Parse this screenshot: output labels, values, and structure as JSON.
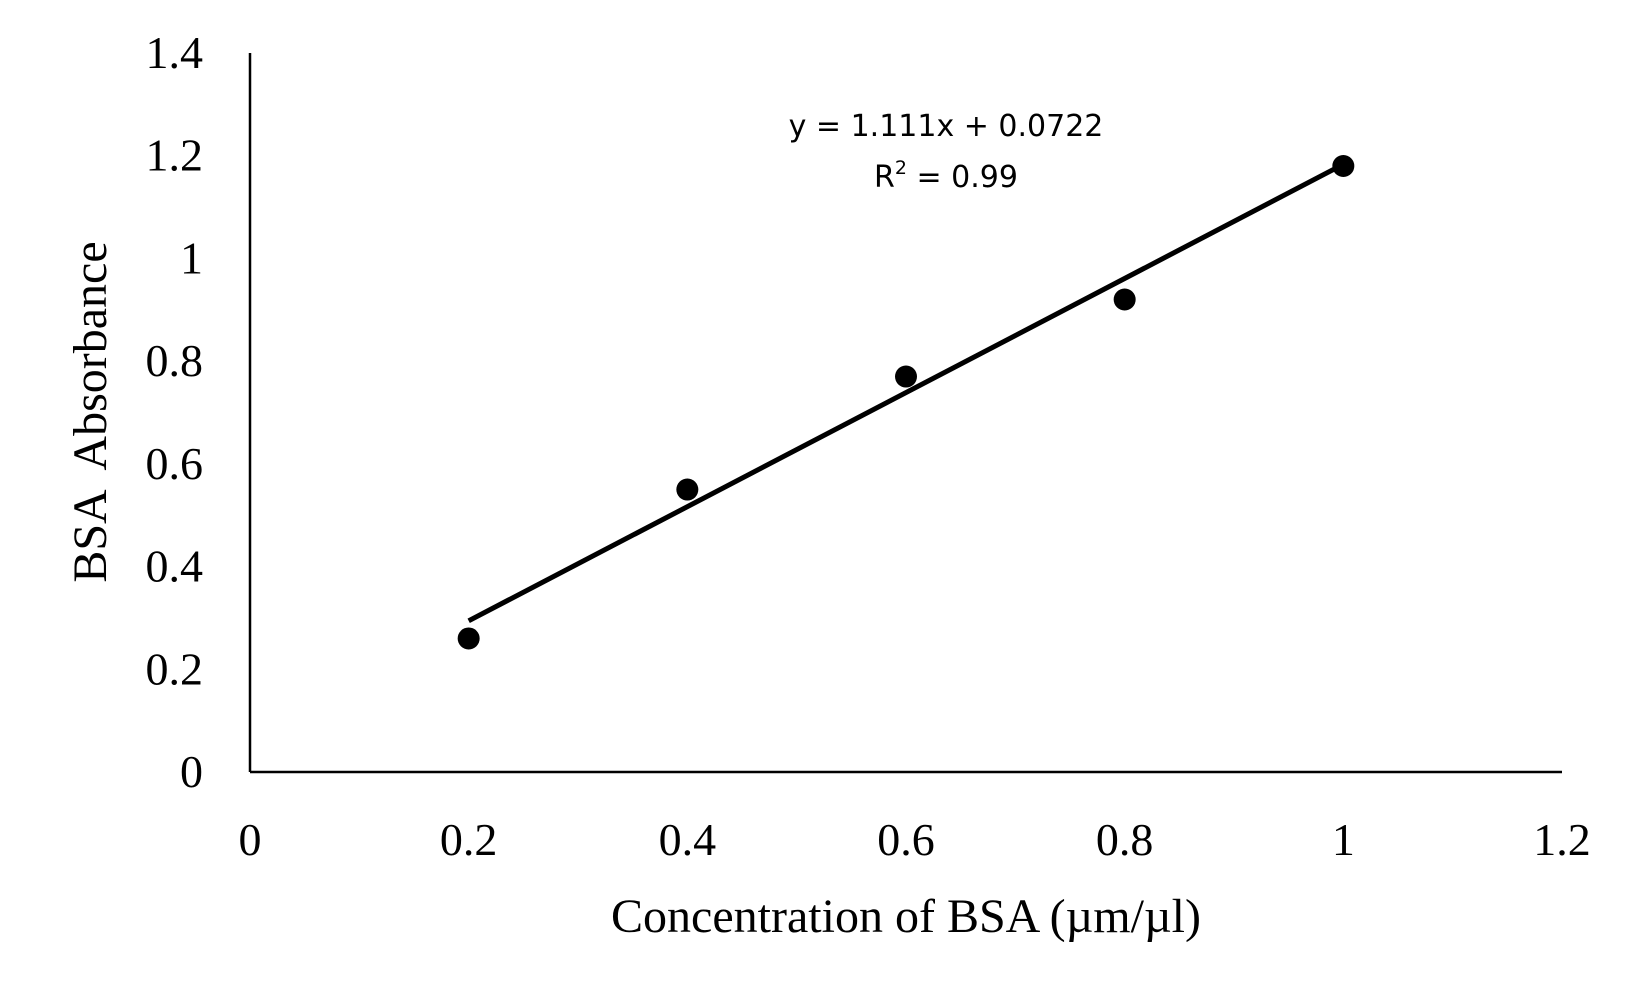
{
  "chart_data": {
    "type": "scatter",
    "title": "",
    "xlabel": "Concentration of BSA (µm/µl)",
    "ylabel": "BSA  Absorbance",
    "xlim": [
      0,
      1.2
    ],
    "ylim": [
      0,
      1.4
    ],
    "xticks": [
      "0",
      "0.2",
      "0.4",
      "0.6",
      "0.8",
      "1",
      "1.2"
    ],
    "yticks": [
      "0",
      "0.2",
      "0.4",
      "0.6",
      "0.8",
      "1",
      "1.2",
      "1.4"
    ],
    "grid": false,
    "series": [
      {
        "name": "BSA",
        "x": [
          0.2,
          0.4,
          0.6,
          0.8,
          1.0
        ],
        "y": [
          0.26,
          0.55,
          0.77,
          0.92,
          1.18
        ],
        "color": "#000000"
      }
    ],
    "trendline": {
      "type": "linear",
      "slope": 1.111,
      "intercept": 0.0722,
      "x_range": [
        0.2,
        1.0
      ],
      "equation_label": "y = 1.111x + 0.0722",
      "r2_prefix": "R",
      "r2_sup": "2",
      "r2_value": " = 0.99",
      "color": "#000000"
    }
  }
}
